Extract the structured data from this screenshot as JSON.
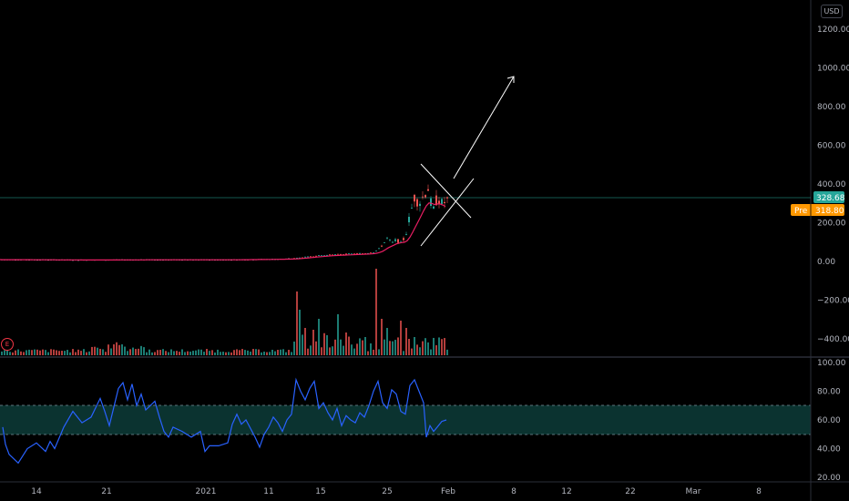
{
  "currency": "USD",
  "earnings_icon": "E",
  "price_axis": {
    "ticks": [
      "1200.00",
      "1000.00",
      "800.00",
      "600.00",
      "400.00",
      "200.00",
      "0.00",
      "−200.00",
      "−400.00"
    ],
    "last_price": "328.68",
    "premarket_label": "Pre",
    "premarket_price": "318.80"
  },
  "rsi_axis": {
    "ticks": [
      "100.00",
      "80.00",
      "60.00",
      "40.00",
      "20.00"
    ]
  },
  "time_axis": {
    "labels": [
      "14",
      "21",
      "2021",
      "11",
      "15",
      "25",
      "Feb",
      "8",
      "12",
      "22",
      "Mar",
      "8"
    ]
  },
  "colors": {
    "background": "#000000",
    "up": "#26a69a",
    "down": "#ef5350",
    "candle_neutral": "#d1d4dc",
    "moving_average": "#e91e63",
    "rsi_line": "#2962ff",
    "rsi_band": "#0b3330",
    "last_price_tag": "#26a69a",
    "premarket_tag": "#ff9800",
    "drawing": "#ffffff"
  },
  "chart_data": {
    "type": "candlestick",
    "title": "",
    "price_range": [
      -450,
      1300
    ],
    "price_series_approx": [
      [
        0,
        10
      ],
      [
        50,
        9
      ],
      [
        100,
        8
      ],
      [
        150,
        9
      ],
      [
        200,
        9
      ],
      [
        250,
        9
      ],
      [
        300,
        12
      ],
      [
        320,
        14
      ],
      [
        330,
        20
      ],
      [
        340,
        25
      ],
      [
        350,
        30
      ],
      [
        360,
        33
      ],
      [
        370,
        36
      ],
      [
        380,
        38
      ],
      [
        390,
        40
      ],
      [
        400,
        42
      ],
      [
        410,
        48
      ],
      [
        415,
        60
      ],
      [
        420,
        85
      ],
      [
        425,
        120
      ],
      [
        430,
        95
      ],
      [
        435,
        110
      ],
      [
        440,
        100
      ],
      [
        445,
        125
      ],
      [
        450,
        240
      ],
      [
        455,
        330
      ],
      [
        460,
        300
      ],
      [
        465,
        340
      ],
      [
        470,
        380
      ],
      [
        475,
        250
      ],
      [
        480,
        330
      ],
      [
        485,
        300
      ],
      [
        490,
        310
      ],
      [
        493,
        325
      ]
    ],
    "pattern_drawing": {
      "type": "pennant",
      "projection_target_price": 980
    },
    "rsi": {
      "range": [
        15,
        105
      ],
      "upper_band": 70,
      "lower_band": 50,
      "values": [
        [
          3,
          55
        ],
        [
          6,
          43
        ],
        [
          10,
          36
        ],
        [
          20,
          30
        ],
        [
          30,
          40
        ],
        [
          40,
          44
        ],
        [
          50,
          38
        ],
        [
          55,
          45
        ],
        [
          60,
          40
        ],
        [
          70,
          55
        ],
        [
          80,
          66
        ],
        [
          90,
          58
        ],
        [
          100,
          62
        ],
        [
          110,
          75
        ],
        [
          115,
          66
        ],
        [
          120,
          56
        ],
        [
          130,
          82
        ],
        [
          135,
          86
        ],
        [
          140,
          74
        ],
        [
          145,
          85
        ],
        [
          150,
          70
        ],
        [
          155,
          78
        ],
        [
          160,
          67
        ],
        [
          170,
          73
        ],
        [
          175,
          62
        ],
        [
          180,
          52
        ],
        [
          185,
          48
        ],
        [
          190,
          55
        ],
        [
          200,
          52
        ],
        [
          210,
          48
        ],
        [
          220,
          52
        ],
        [
          225,
          38
        ],
        [
          230,
          42
        ],
        [
          240,
          42
        ],
        [
          250,
          44
        ],
        [
          255,
          57
        ],
        [
          260,
          64
        ],
        [
          265,
          57
        ],
        [
          270,
          60
        ],
        [
          275,
          54
        ],
        [
          280,
          48
        ],
        [
          285,
          41
        ],
        [
          290,
          50
        ],
        [
          295,
          55
        ],
        [
          300,
          62
        ],
        [
          305,
          58
        ],
        [
          310,
          52
        ],
        [
          315,
          60
        ],
        [
          320,
          64
        ],
        [
          325,
          88
        ],
        [
          330,
          80
        ],
        [
          335,
          74
        ],
        [
          340,
          82
        ],
        [
          345,
          87
        ],
        [
          350,
          68
        ],
        [
          355,
          72
        ],
        [
          360,
          65
        ],
        [
          365,
          60
        ],
        [
          370,
          68
        ],
        [
          375,
          56
        ],
        [
          380,
          63
        ],
        [
          385,
          60
        ],
        [
          390,
          58
        ],
        [
          395,
          65
        ],
        [
          400,
          62
        ],
        [
          405,
          70
        ],
        [
          410,
          80
        ],
        [
          415,
          87
        ],
        [
          420,
          72
        ],
        [
          425,
          68
        ],
        [
          430,
          81
        ],
        [
          435,
          78
        ],
        [
          440,
          66
        ],
        [
          445,
          64
        ],
        [
          450,
          84
        ],
        [
          455,
          88
        ],
        [
          460,
          80
        ],
        [
          465,
          72
        ],
        [
          468,
          48
        ],
        [
          472,
          56
        ],
        [
          476,
          52
        ],
        [
          480,
          55
        ],
        [
          485,
          59
        ],
        [
          490,
          60
        ]
      ]
    }
  }
}
